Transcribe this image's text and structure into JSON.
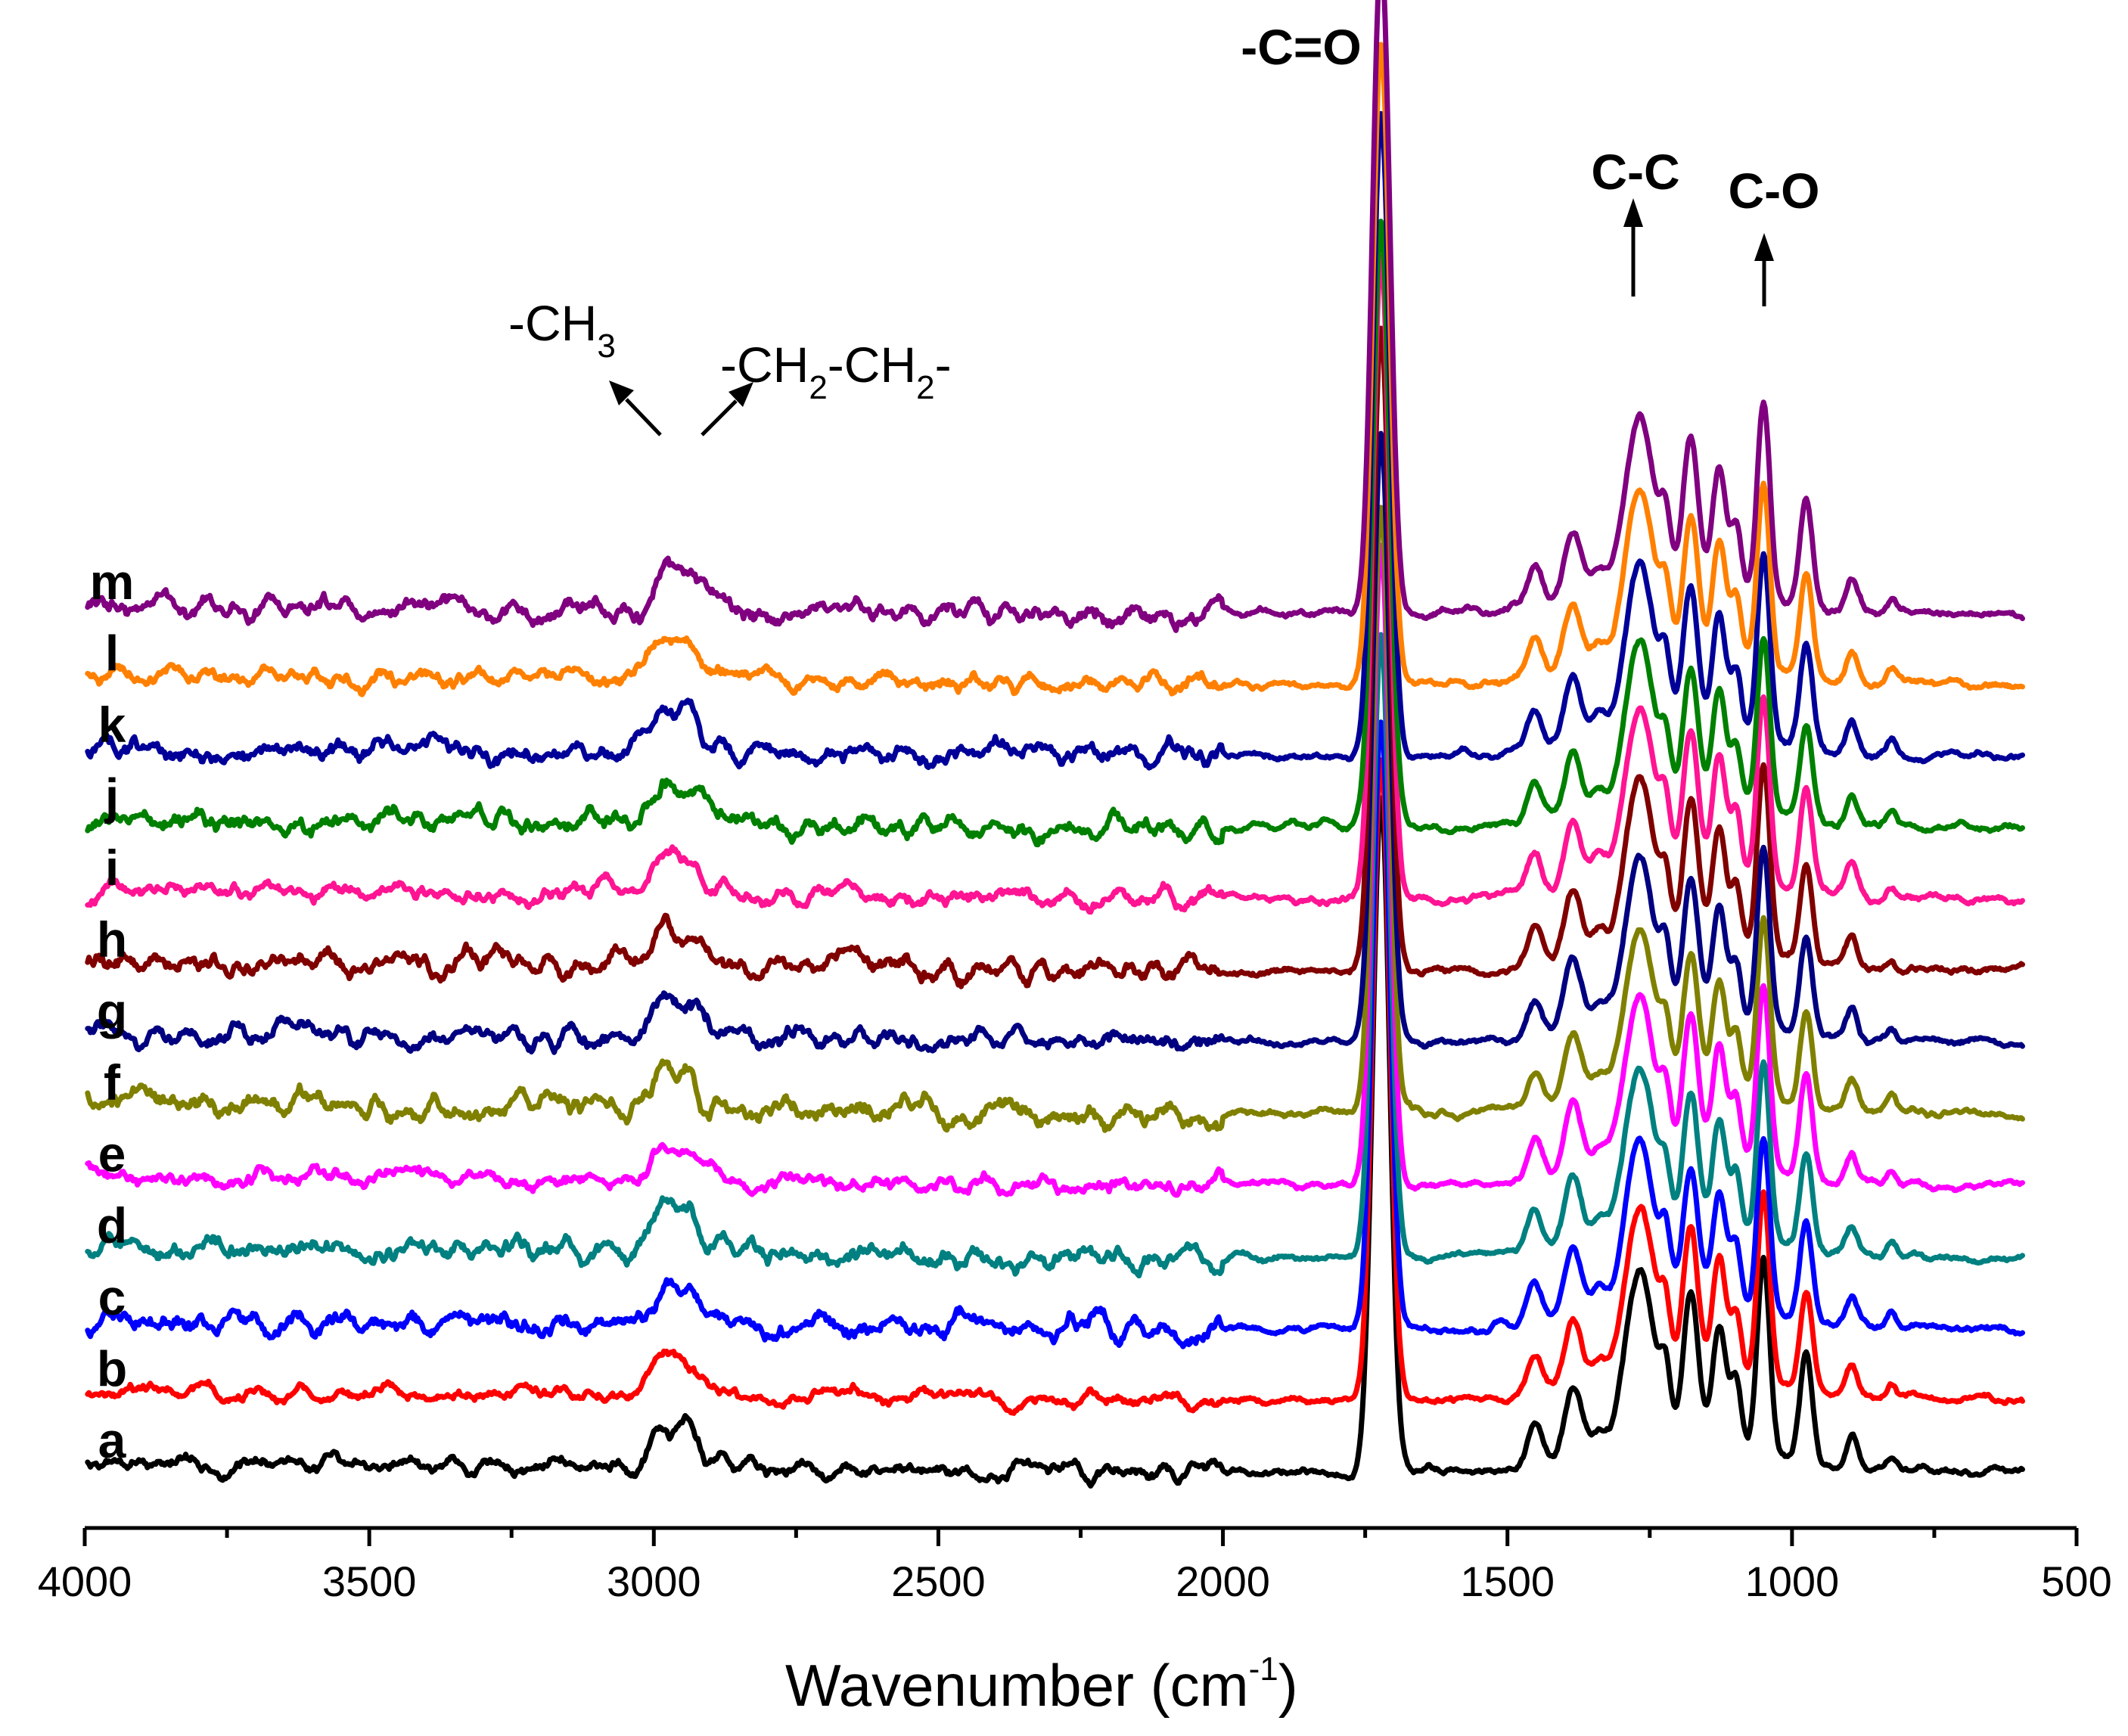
{
  "chart_data": {
    "type": "line",
    "title": "",
    "xlabel": "Wavenumber (cm",
    "xlabel_sup": "-1",
    "xlabel_close": ")",
    "ylabel": "",
    "xlim": [
      4000,
      500
    ],
    "x_reversed": true,
    "x_ticks": [
      4000,
      3500,
      3000,
      2500,
      2000,
      1500,
      1000,
      500
    ],
    "grid": false,
    "series": [
      {
        "name": "a",
        "color": "#000000",
        "offset": 0,
        "noise": 0.9,
        "intensity": 1.0
      },
      {
        "name": "b",
        "color": "#ff0000",
        "offset": 1,
        "noise": 0.8,
        "intensity": 0.95
      },
      {
        "name": "c",
        "color": "#0000ff",
        "offset": 2,
        "noise": 1.3,
        "intensity": 0.9
      },
      {
        "name": "d",
        "color": "#008080",
        "offset": 3,
        "noise": 1.3,
        "intensity": 0.92
      },
      {
        "name": "e",
        "color": "#ff00ff",
        "offset": 4,
        "noise": 1.0,
        "intensity": 0.95
      },
      {
        "name": "f",
        "color": "#808000",
        "offset": 5,
        "noise": 1.4,
        "intensity": 0.9
      },
      {
        "name": "g",
        "color": "#000080",
        "offset": 6,
        "noise": 1.2,
        "intensity": 0.9
      },
      {
        "name": "h",
        "color": "#800000",
        "offset": 7,
        "noise": 1.3,
        "intensity": 0.95
      },
      {
        "name": "i",
        "color": "#ff1493",
        "offset": 8,
        "noise": 1.0,
        "intensity": 0.95
      },
      {
        "name": "j",
        "color": "#008000",
        "offset": 9,
        "noise": 1.3,
        "intensity": 0.9
      },
      {
        "name": "k",
        "color": "#000099",
        "offset": 10,
        "noise": 1.2,
        "intensity": 0.95
      },
      {
        "name": "l",
        "color": "#ff8000",
        "offset": 11,
        "noise": 1.0,
        "intensity": 0.95
      },
      {
        "name": "m",
        "color": "#800080",
        "offset": 12,
        "noise": 1.3,
        "intensity": 0.98
      }
    ],
    "peaks": [
      {
        "x": 2980,
        "height": 1.7,
        "width": 22
      },
      {
        "x": 2935,
        "height": 1.3,
        "width": 18
      },
      {
        "x": 2880,
        "height": 0.4,
        "width": 15
      },
      {
        "x": 1722,
        "height": 27.0,
        "width": 15
      },
      {
        "x": 1452,
        "height": 1.7,
        "width": 13
      },
      {
        "x": 1385,
        "height": 2.9,
        "width": 15
      },
      {
        "x": 1340,
        "height": 0.9,
        "width": 12
      },
      {
        "x": 1268,
        "height": 7.0,
        "width": 25
      },
      {
        "x": 1222,
        "height": 2.3,
        "width": 9
      },
      {
        "x": 1178,
        "height": 5.9,
        "width": 13
      },
      {
        "x": 1128,
        "height": 4.9,
        "width": 12
      },
      {
        "x": 1098,
        "height": 2.6,
        "width": 9
      },
      {
        "x": 1050,
        "height": 7.8,
        "width": 11
      },
      {
        "x": 975,
        "height": 4.3,
        "width": 11
      },
      {
        "x": 895,
        "height": 1.3,
        "width": 10
      },
      {
        "x": 825,
        "height": 0.6,
        "width": 8
      }
    ],
    "annotations": [
      {
        "id": "ch3",
        "text": "-CH",
        "sub": "3",
        "x": 2980,
        "arrow": "up-left"
      },
      {
        "id": "ch2",
        "text": "-CH",
        "sub": "2",
        "text2": "-CH",
        "sub2": "2",
        "tail": "-",
        "x": 2935,
        "arrow": "up-right"
      },
      {
        "id": "co_double",
        "text": "-C=O",
        "x": 1722
      },
      {
        "id": "cc",
        "text": "C-C",
        "x": 1268,
        "arrow": "up"
      },
      {
        "id": "co",
        "text": "C-O",
        "x": 1050,
        "arrow": "up"
      }
    ]
  }
}
